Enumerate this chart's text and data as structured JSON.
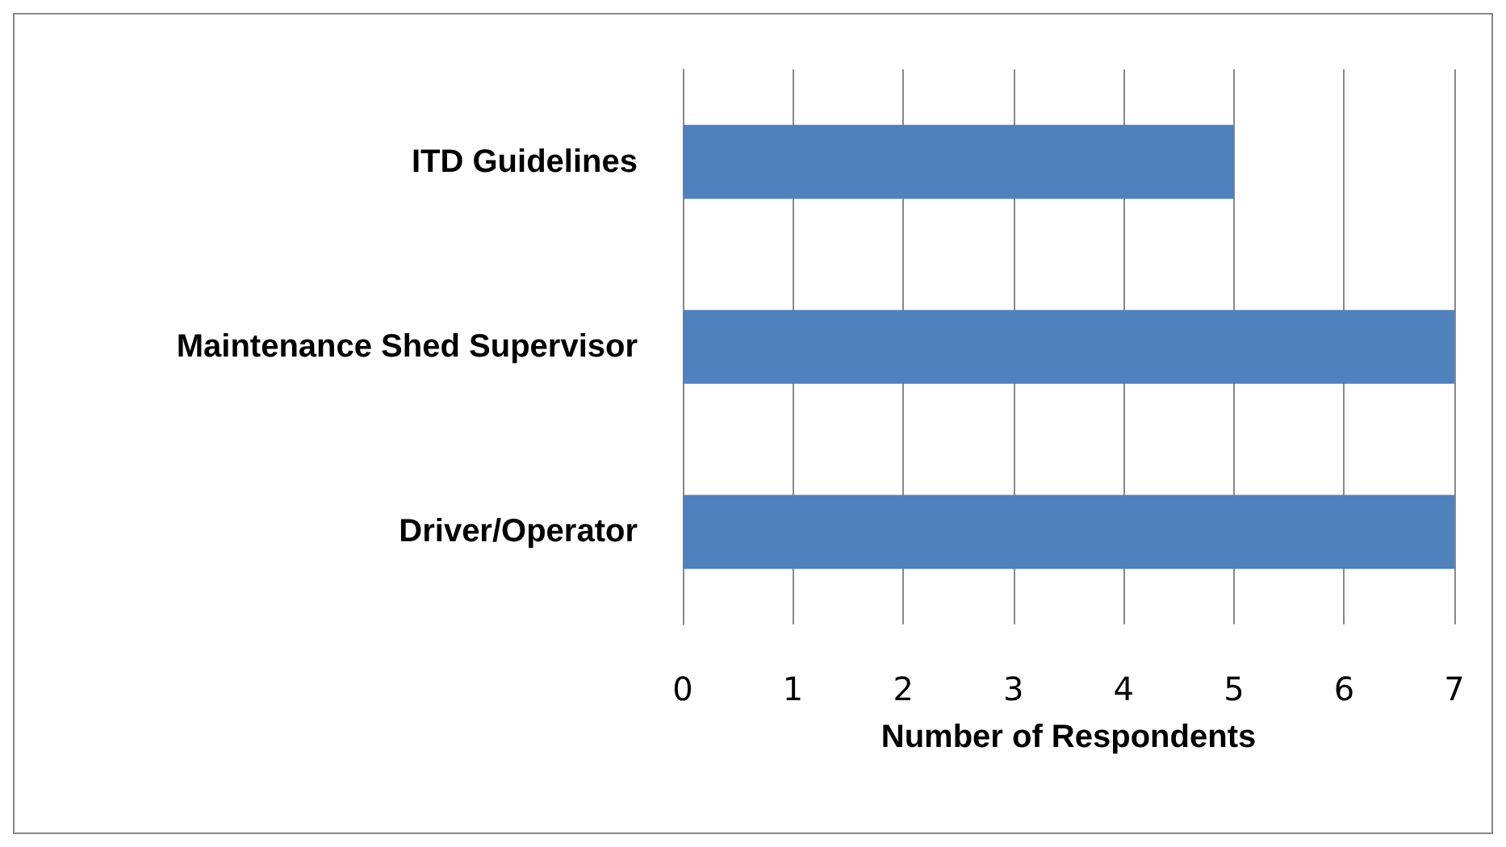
{
  "chart_data": {
    "type": "bar",
    "orientation": "horizontal",
    "xlabel": "Number of Respondents",
    "categories": [
      "ITD Guidelines",
      "Maintenance Shed Supervisor",
      "Driver/Operator"
    ],
    "values": [
      5,
      7,
      7
    ],
    "color": "#4f81bd",
    "xlim": [
      0,
      7
    ],
    "xticks": [
      0,
      1,
      2,
      3,
      4,
      5,
      6,
      7
    ],
    "grid": "x"
  }
}
